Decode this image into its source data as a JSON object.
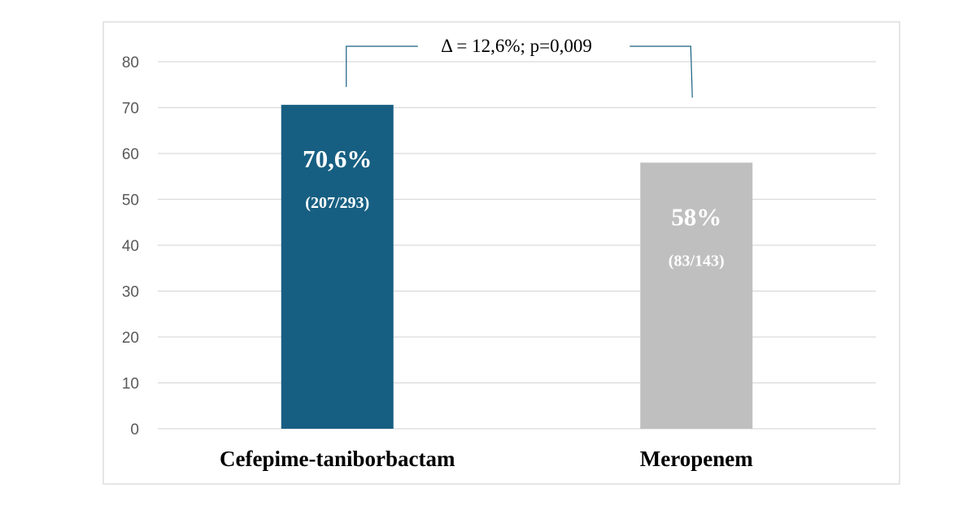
{
  "chart_data": {
    "type": "bar",
    "categories": [
      "Cefepime-taniborbactam",
      "Meropenem"
    ],
    "values": [
      70.6,
      58
    ],
    "data_labels": [
      "70,6%",
      "58%"
    ],
    "count_labels": [
      "(207/293)",
      "(83/143)"
    ],
    "bar_colors": [
      "#175f82",
      "#bfbfbf"
    ],
    "ylim": [
      0,
      80
    ],
    "yticks": [
      0,
      10,
      20,
      30,
      40,
      50,
      60,
      70,
      80
    ],
    "grid": true,
    "annotation": "Δ = 12,6%; p=0,009",
    "annotation_color": "#175f82",
    "title": "",
    "xlabel": "",
    "ylabel": ""
  }
}
